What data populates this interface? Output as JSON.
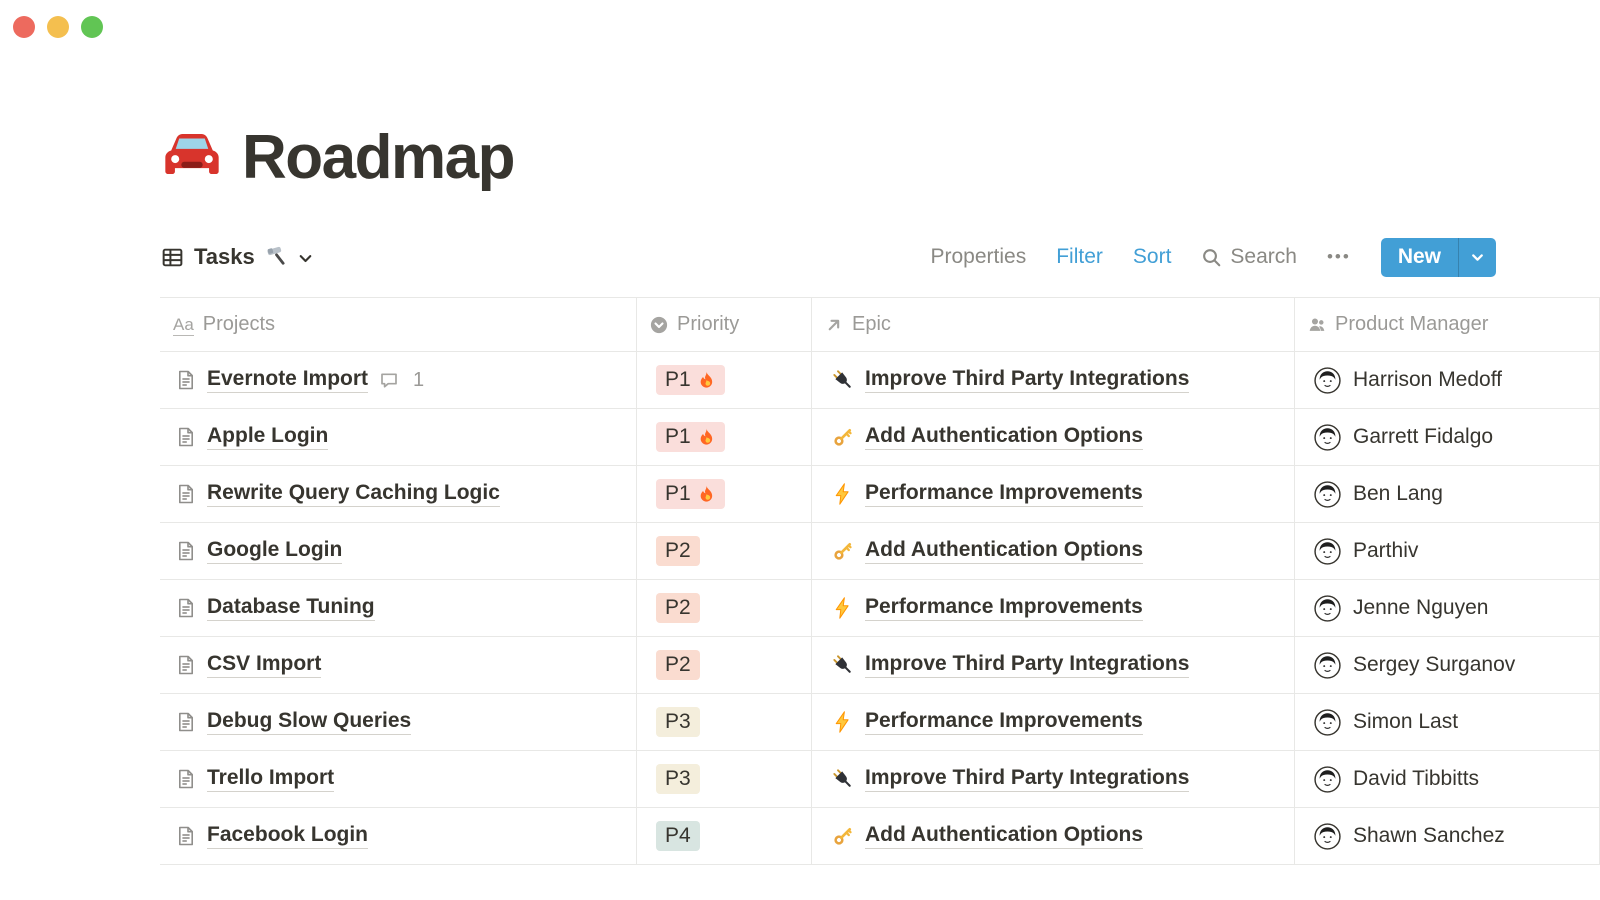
{
  "window": {
    "traffic_lights": [
      {
        "name": "close",
        "color": "#ED6A5E"
      },
      {
        "name": "minimize",
        "color": "#F4BF4F"
      },
      {
        "name": "zoom",
        "color": "#61C554"
      }
    ]
  },
  "page": {
    "title": "Roadmap"
  },
  "toolbar": {
    "view_label": "Tasks",
    "properties_label": "Properties",
    "filter_label": "Filter",
    "sort_label": "Sort",
    "search_label": "Search",
    "more_label": "•••",
    "new_label": "New",
    "accent_blue": "#429FD6"
  },
  "table": {
    "columns": [
      {
        "label": "Projects",
        "icon": "text-property-icon"
      },
      {
        "label": "Priority",
        "icon": "select-property-icon"
      },
      {
        "label": "Epic",
        "icon": "relation-property-icon"
      },
      {
        "label": "Product Manager",
        "icon": "person-property-icon"
      }
    ],
    "priority_colors": {
      "P1": "#FADEDB",
      "P2": "#FADCD0",
      "P3": "#F4EEDC",
      "P4": "#D8E5E1"
    },
    "rows": [
      {
        "project": "Evernote Import",
        "comments": "1",
        "priority": "P1",
        "fire": true,
        "epic": "Improve Third Party Integrations",
        "epic_icon": "plug-icon",
        "pm": "Harrison Medoff"
      },
      {
        "project": "Apple Login",
        "priority": "P1",
        "fire": true,
        "epic": "Add Authentication Options",
        "epic_icon": "key-icon",
        "pm": "Garrett Fidalgo"
      },
      {
        "project": "Rewrite Query Caching Logic",
        "priority": "P1",
        "fire": true,
        "epic": "Performance Improvements",
        "epic_icon": "lightning-icon",
        "pm": "Ben Lang"
      },
      {
        "project": "Google Login",
        "priority": "P2",
        "fire": false,
        "epic": "Add Authentication Options",
        "epic_icon": "key-icon",
        "pm": "Parthiv"
      },
      {
        "project": "Database Tuning",
        "priority": "P2",
        "fire": false,
        "epic": "Performance Improvements",
        "epic_icon": "lightning-icon",
        "pm": "Jenne Nguyen"
      },
      {
        "project": "CSV Import",
        "priority": "P2",
        "fire": false,
        "epic": "Improve Third Party Integrations",
        "epic_icon": "plug-icon",
        "pm": "Sergey Surganov"
      },
      {
        "project": "Debug Slow Queries",
        "priority": "P3",
        "fire": false,
        "epic": "Performance Improvements",
        "epic_icon": "lightning-icon",
        "pm": "Simon Last"
      },
      {
        "project": "Trello Import",
        "priority": "P3",
        "fire": false,
        "epic": "Improve Third Party Integrations",
        "epic_icon": "plug-icon",
        "pm": "David Tibbitts"
      },
      {
        "project": "Facebook Login",
        "priority": "P4",
        "fire": false,
        "epic": "Add Authentication Options",
        "epic_icon": "key-icon",
        "pm": "Shawn Sanchez"
      }
    ]
  }
}
